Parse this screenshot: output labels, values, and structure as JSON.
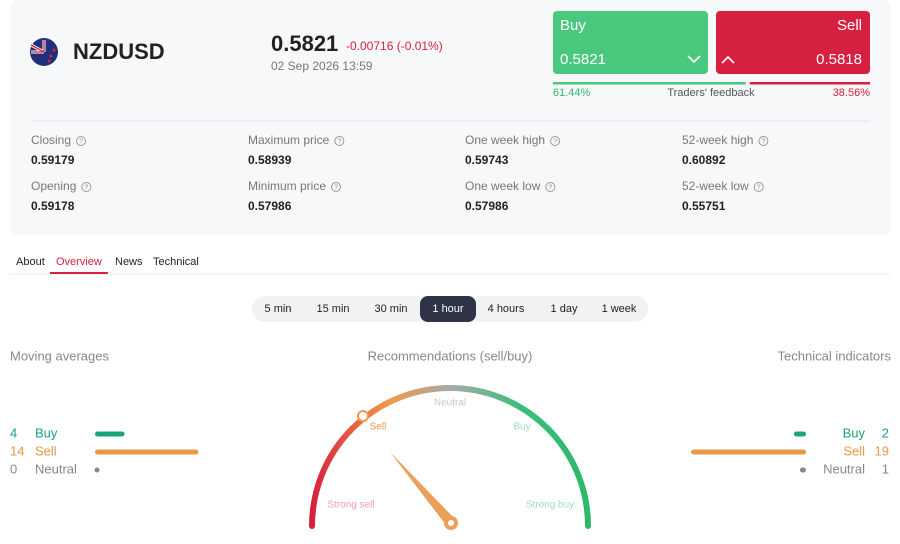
{
  "instrument": {
    "symbol": "NZDUSD",
    "price": "0.5821",
    "change": "-0.00716 (-0.01%)",
    "datetime": "02 Sep 2026 13:59"
  },
  "trade": {
    "buy_label": "Buy",
    "buy_price": "0.5821",
    "sell_label": "Sell",
    "sell_price": "0.5818",
    "buy_share": "61.44%",
    "feedback_label": "Traders' feedback",
    "sell_share": "38.56%"
  },
  "stats": [
    {
      "label": "Closing",
      "value": "0.59179"
    },
    {
      "label": "Maximum price",
      "value": "0.58939"
    },
    {
      "label": "One week high",
      "value": "0.59743"
    },
    {
      "label": "52-week high",
      "value": "0.60892"
    },
    {
      "label": "Opening",
      "value": "0.59178"
    },
    {
      "label": "Minimum price",
      "value": "0.57986"
    },
    {
      "label": "One week low",
      "value": "0.57986"
    },
    {
      "label": "52-week low",
      "value": "0.55751"
    }
  ],
  "tabs": {
    "items": [
      "About",
      "Overview",
      "News",
      "Technical"
    ],
    "active": 1
  },
  "timeframes": {
    "items": [
      "5 min",
      "15 min",
      "30 min",
      "1 hour",
      "4 hours",
      "1 day",
      "1 week"
    ],
    "active": 3
  },
  "moving_averages": {
    "title": "Moving averages",
    "rows": [
      {
        "count": 4,
        "label": "Buy"
      },
      {
        "count": 14,
        "label": "Sell"
      },
      {
        "count": 0,
        "label": "Neutral"
      }
    ]
  },
  "recommendations": {
    "title": "Recommendations (sell/buy)",
    "scale": [
      "Strong sell",
      "Sell",
      "Neutral",
      "Buy",
      "Strong buy"
    ]
  },
  "technical_indicators": {
    "title": "Technical indicators",
    "rows": [
      {
        "count": 2,
        "label": "Buy"
      },
      {
        "count": 19,
        "label": "Sell"
      },
      {
        "count": 1,
        "label": "Neutral"
      }
    ]
  }
}
